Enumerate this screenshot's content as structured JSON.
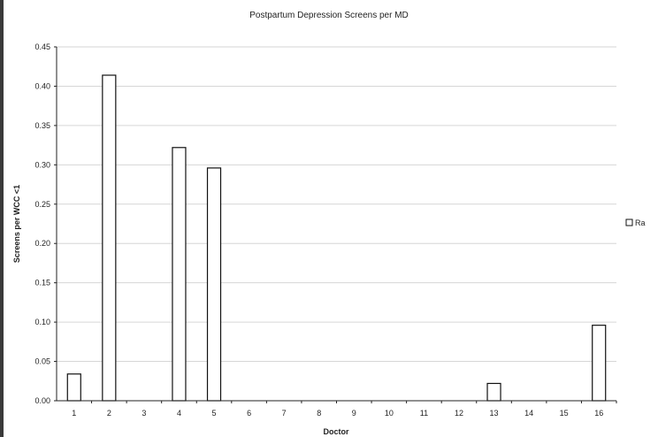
{
  "chart_data": {
    "type": "bar",
    "title": "Postpartum Depression Screens per MD",
    "xlabel": "Doctor",
    "ylabel": "Screens per WCC <1",
    "ylim": [
      0,
      0.45
    ],
    "yticks": [
      "0.00",
      "0.05",
      "0.10",
      "0.15",
      "0.20",
      "0.25",
      "0.30",
      "0.35",
      "0.40",
      "0.45"
    ],
    "categories": [
      "1",
      "2",
      "3",
      "4",
      "5",
      "6",
      "7",
      "8",
      "9",
      "10",
      "11",
      "12",
      "13",
      "14",
      "15",
      "16"
    ],
    "series": [
      {
        "name": "Ra",
        "values": [
          0.034,
          0.414,
          0,
          0.322,
          0.296,
          0,
          0,
          0,
          0,
          0,
          0,
          0,
          0.022,
          0,
          0,
          0.096
        ]
      }
    ],
    "grid": true,
    "legend_position": "right",
    "colors": {
      "bar_fill": "#ffffff",
      "bar_stroke": "#111111",
      "grid": "#d6d6d6",
      "axis": "#222222"
    }
  }
}
